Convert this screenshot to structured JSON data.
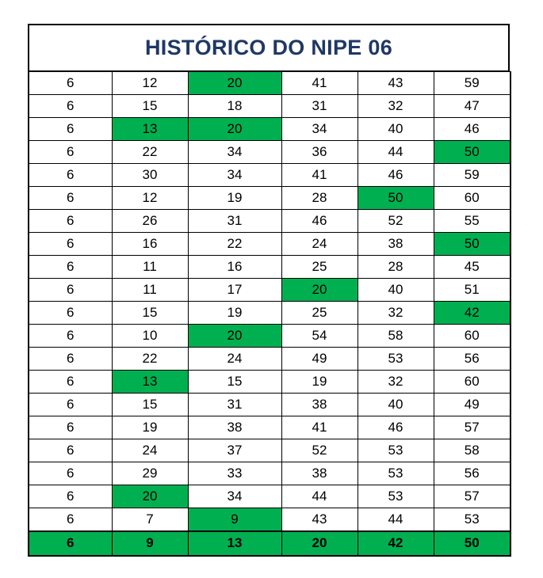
{
  "title": "HISTÓRICO DO NIPE 06",
  "highlight_color": "#00b050",
  "title_color": "#1f3864",
  "rows": [
    {
      "values": [
        "6",
        "12",
        "20",
        "41",
        "43",
        "59"
      ],
      "highlight": [
        2
      ]
    },
    {
      "values": [
        "6",
        "15",
        "18",
        "31",
        "32",
        "47"
      ],
      "highlight": []
    },
    {
      "values": [
        "6",
        "13",
        "20",
        "34",
        "40",
        "46"
      ],
      "highlight": [
        1,
        2
      ]
    },
    {
      "values": [
        "6",
        "22",
        "34",
        "36",
        "44",
        "50"
      ],
      "highlight": [
        5
      ]
    },
    {
      "values": [
        "6",
        "30",
        "34",
        "41",
        "46",
        "59"
      ],
      "highlight": []
    },
    {
      "values": [
        "6",
        "12",
        "19",
        "28",
        "50",
        "60"
      ],
      "highlight": [
        4
      ]
    },
    {
      "values": [
        "6",
        "26",
        "31",
        "46",
        "52",
        "55"
      ],
      "highlight": []
    },
    {
      "values": [
        "6",
        "16",
        "22",
        "24",
        "38",
        "50"
      ],
      "highlight": [
        5
      ]
    },
    {
      "values": [
        "6",
        "11",
        "16",
        "25",
        "28",
        "45"
      ],
      "highlight": []
    },
    {
      "values": [
        "6",
        "11",
        "17",
        "20",
        "40",
        "51"
      ],
      "highlight": [
        3
      ]
    },
    {
      "values": [
        "6",
        "15",
        "19",
        "25",
        "32",
        "42"
      ],
      "highlight": [
        5
      ]
    },
    {
      "values": [
        "6",
        "10",
        "20",
        "54",
        "58",
        "60"
      ],
      "highlight": [
        2
      ]
    },
    {
      "values": [
        "6",
        "22",
        "24",
        "49",
        "53",
        "56"
      ],
      "highlight": []
    },
    {
      "values": [
        "6",
        "13",
        "15",
        "19",
        "32",
        "60"
      ],
      "highlight": [
        1
      ]
    },
    {
      "values": [
        "6",
        "15",
        "31",
        "38",
        "40",
        "49"
      ],
      "highlight": []
    },
    {
      "values": [
        "6",
        "19",
        "38",
        "41",
        "46",
        "57"
      ],
      "highlight": []
    },
    {
      "values": [
        "6",
        "24",
        "37",
        "52",
        "53",
        "58"
      ],
      "highlight": []
    },
    {
      "values": [
        "6",
        "29",
        "33",
        "38",
        "53",
        "56"
      ],
      "highlight": []
    },
    {
      "values": [
        "6",
        "20",
        "34",
        "44",
        "53",
        "57"
      ],
      "highlight": [
        1
      ]
    },
    {
      "values": [
        "6",
        "7",
        "9",
        "43",
        "44",
        "53"
      ],
      "highlight": [
        2
      ]
    }
  ],
  "summary_row": [
    "6",
    "9",
    "13",
    "20",
    "42",
    "50"
  ]
}
